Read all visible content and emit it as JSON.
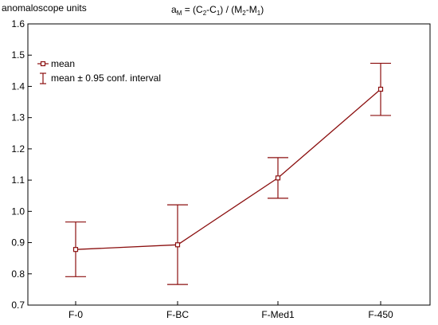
{
  "chart_data": {
    "type": "line",
    "title": {
      "a": "a",
      "a_sub": "M",
      "eq": " = (C",
      "s1": "2",
      "t1": "-C",
      "s2": "1",
      "t2": ") / (M",
      "s3": "2",
      "t3": "-M",
      "s4": "1",
      "t4": ")"
    },
    "ylabel": "anomaloscope units",
    "categories": [
      "F-0",
      "F-BC",
      "F-Med1",
      "F-450"
    ],
    "series": [
      {
        "name": "mean",
        "values": [
          0.878,
          0.893,
          1.107,
          1.391
        ],
        "ci_lower": [
          0.791,
          0.766,
          1.042,
          1.307
        ],
        "ci_upper": [
          0.966,
          1.021,
          1.172,
          1.474
        ]
      }
    ],
    "legend": {
      "items": [
        "mean",
        "mean ± 0.95 conf. interval"
      ],
      "placement": "top-left"
    },
    "ylim": [
      0.7,
      1.6
    ],
    "yticks": [
      "0.7",
      "0.8",
      "0.9",
      "1.0",
      "1.1",
      "1.2",
      "1.3",
      "1.4",
      "1.5",
      "1.6"
    ],
    "grid": false,
    "color": "#8b0f0f"
  }
}
